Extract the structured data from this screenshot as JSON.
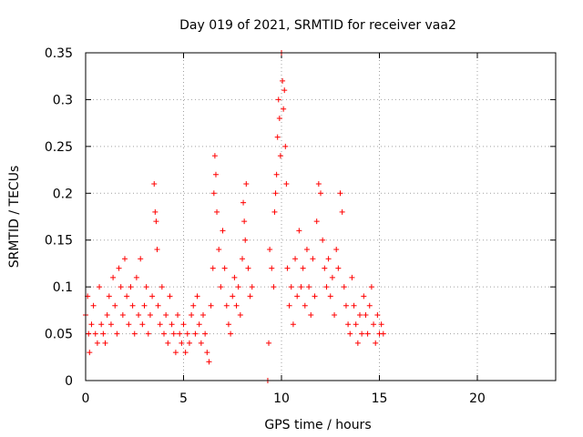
{
  "chart_data": {
    "type": "scatter",
    "title": "Day 019 of 2021, SRMTID for receiver vaa2",
    "xlabel": "GPS time / hours",
    "ylabel": "SRMTID / TECUs",
    "xlim": [
      0,
      24
    ],
    "ylim": [
      0,
      0.35
    ],
    "xticks": [
      0,
      5,
      10,
      15,
      20
    ],
    "yticks": [
      0,
      0.05,
      0.1,
      0.15,
      0.2,
      0.25,
      0.3,
      0.35
    ],
    "xtick_labels": [
      "0",
      "5",
      "10",
      "15",
      "20"
    ],
    "ytick_labels": [
      "0",
      "0.05",
      "0.1",
      "0.15",
      "0.2",
      "0.25",
      "0.3",
      "0.35"
    ],
    "grid": true,
    "marker": "+",
    "color": "#ff0000",
    "series": [
      {
        "name": "vaa2",
        "points": [
          [
            0.0,
            0.07
          ],
          [
            0.1,
            0.09
          ],
          [
            0.15,
            0.05
          ],
          [
            0.2,
            0.03
          ],
          [
            0.3,
            0.06
          ],
          [
            0.4,
            0.08
          ],
          [
            0.5,
            0.05
          ],
          [
            0.6,
            0.04
          ],
          [
            0.7,
            0.1
          ],
          [
            0.8,
            0.06
          ],
          [
            0.9,
            0.05
          ],
          [
            1.0,
            0.04
          ],
          [
            1.1,
            0.07
          ],
          [
            1.2,
            0.09
          ],
          [
            1.3,
            0.06
          ],
          [
            1.4,
            0.11
          ],
          [
            1.5,
            0.08
          ],
          [
            1.6,
            0.05
          ],
          [
            1.7,
            0.12
          ],
          [
            1.8,
            0.1
          ],
          [
            1.9,
            0.07
          ],
          [
            2.0,
            0.13
          ],
          [
            2.1,
            0.09
          ],
          [
            2.2,
            0.06
          ],
          [
            2.3,
            0.1
          ],
          [
            2.4,
            0.08
          ],
          [
            2.5,
            0.05
          ],
          [
            2.6,
            0.11
          ],
          [
            2.7,
            0.07
          ],
          [
            2.8,
            0.13
          ],
          [
            2.9,
            0.06
          ],
          [
            3.0,
            0.08
          ],
          [
            3.1,
            0.1
          ],
          [
            3.2,
            0.05
          ],
          [
            3.3,
            0.07
          ],
          [
            3.4,
            0.09
          ],
          [
            3.5,
            0.21
          ],
          [
            3.55,
            0.18
          ],
          [
            3.6,
            0.17
          ],
          [
            3.65,
            0.14
          ],
          [
            3.7,
            0.08
          ],
          [
            3.8,
            0.06
          ],
          [
            3.9,
            0.1
          ],
          [
            4.0,
            0.05
          ],
          [
            4.1,
            0.07
          ],
          [
            4.2,
            0.04
          ],
          [
            4.3,
            0.09
          ],
          [
            4.4,
            0.06
          ],
          [
            4.5,
            0.05
          ],
          [
            4.6,
            0.03
          ],
          [
            4.7,
            0.07
          ],
          [
            4.8,
            0.05
          ],
          [
            4.9,
            0.04
          ],
          [
            5.0,
            0.06
          ],
          [
            5.1,
            0.03
          ],
          [
            5.2,
            0.05
          ],
          [
            5.3,
            0.04
          ],
          [
            5.4,
            0.07
          ],
          [
            5.5,
            0.08
          ],
          [
            5.6,
            0.05
          ],
          [
            5.7,
            0.09
          ],
          [
            5.8,
            0.06
          ],
          [
            5.9,
            0.04
          ],
          [
            6.0,
            0.07
          ],
          [
            6.1,
            0.05
          ],
          [
            6.2,
            0.03
          ],
          [
            6.3,
            0.02
          ],
          [
            6.4,
            0.08
          ],
          [
            6.5,
            0.12
          ],
          [
            6.55,
            0.2
          ],
          [
            6.6,
            0.24
          ],
          [
            6.65,
            0.22
          ],
          [
            6.7,
            0.18
          ],
          [
            6.8,
            0.14
          ],
          [
            6.9,
            0.1
          ],
          [
            7.0,
            0.16
          ],
          [
            7.1,
            0.12
          ],
          [
            7.2,
            0.08
          ],
          [
            7.3,
            0.06
          ],
          [
            7.4,
            0.05
          ],
          [
            7.5,
            0.09
          ],
          [
            7.6,
            0.11
          ],
          [
            7.7,
            0.08
          ],
          [
            7.8,
            0.1
          ],
          [
            7.9,
            0.07
          ],
          [
            8.0,
            0.13
          ],
          [
            8.05,
            0.19
          ],
          [
            8.1,
            0.17
          ],
          [
            8.15,
            0.15
          ],
          [
            8.2,
            0.21
          ],
          [
            8.3,
            0.12
          ],
          [
            8.4,
            0.09
          ],
          [
            8.5,
            0.1
          ],
          [
            9.3,
            0.0
          ],
          [
            9.35,
            0.04
          ],
          [
            9.4,
            0.14
          ],
          [
            9.5,
            0.12
          ],
          [
            9.6,
            0.1
          ],
          [
            9.65,
            0.18
          ],
          [
            9.7,
            0.2
          ],
          [
            9.75,
            0.22
          ],
          [
            9.8,
            0.26
          ],
          [
            9.85,
            0.3
          ],
          [
            9.9,
            0.28
          ],
          [
            9.95,
            0.24
          ],
          [
            10.0,
            0.35
          ],
          [
            10.05,
            0.32
          ],
          [
            10.1,
            0.29
          ],
          [
            10.15,
            0.31
          ],
          [
            10.2,
            0.25
          ],
          [
            10.25,
            0.21
          ],
          [
            10.3,
            0.12
          ],
          [
            10.4,
            0.08
          ],
          [
            10.5,
            0.1
          ],
          [
            10.6,
            0.06
          ],
          [
            10.7,
            0.13
          ],
          [
            10.8,
            0.09
          ],
          [
            10.9,
            0.16
          ],
          [
            11.0,
            0.1
          ],
          [
            11.1,
            0.12
          ],
          [
            11.2,
            0.08
          ],
          [
            11.3,
            0.14
          ],
          [
            11.4,
            0.1
          ],
          [
            11.5,
            0.07
          ],
          [
            11.6,
            0.13
          ],
          [
            11.7,
            0.09
          ],
          [
            11.8,
            0.17
          ],
          [
            11.9,
            0.21
          ],
          [
            12.0,
            0.2
          ],
          [
            12.1,
            0.15
          ],
          [
            12.2,
            0.12
          ],
          [
            12.3,
            0.1
          ],
          [
            12.4,
            0.13
          ],
          [
            12.5,
            0.09
          ],
          [
            12.6,
            0.11
          ],
          [
            12.7,
            0.07
          ],
          [
            12.8,
            0.14
          ],
          [
            12.9,
            0.12
          ],
          [
            13.0,
            0.2
          ],
          [
            13.1,
            0.18
          ],
          [
            13.2,
            0.1
          ],
          [
            13.3,
            0.08
          ],
          [
            13.4,
            0.06
          ],
          [
            13.5,
            0.05
          ],
          [
            13.6,
            0.11
          ],
          [
            13.7,
            0.08
          ],
          [
            13.8,
            0.06
          ],
          [
            13.9,
            0.04
          ],
          [
            14.0,
            0.07
          ],
          [
            14.1,
            0.05
          ],
          [
            14.2,
            0.09
          ],
          [
            14.3,
            0.07
          ],
          [
            14.4,
            0.05
          ],
          [
            14.5,
            0.08
          ],
          [
            14.6,
            0.1
          ],
          [
            14.7,
            0.06
          ],
          [
            14.8,
            0.04
          ],
          [
            14.9,
            0.07
          ],
          [
            15.0,
            0.05
          ],
          [
            15.1,
            0.06
          ],
          [
            15.2,
            0.05
          ]
        ]
      }
    ]
  }
}
